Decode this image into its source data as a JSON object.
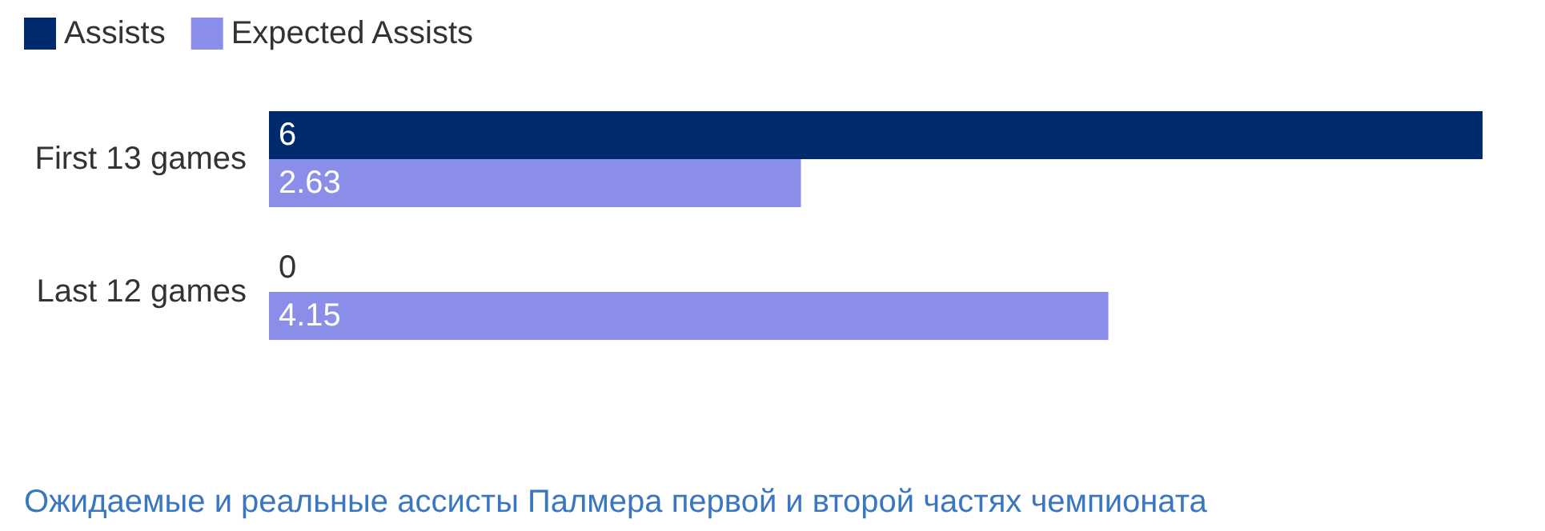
{
  "chart_data": {
    "type": "bar",
    "orientation": "horizontal",
    "categories": [
      "First 13 games",
      "Last 12 games"
    ],
    "series": [
      {
        "name": "Assists",
        "color": "#002a6e",
        "values": [
          6,
          0
        ]
      },
      {
        "name": "Expected Assists",
        "color": "#8a8ee8",
        "values": [
          2.63,
          4.15
        ]
      }
    ],
    "xlim": [
      0,
      6
    ],
    "tick_labels": "y",
    "data_labels": true,
    "legend": "top left",
    "annotations": [
      "Ожидаемые и реальные ассисты Палмера первой и второй частях чемпионата"
    ]
  }
}
